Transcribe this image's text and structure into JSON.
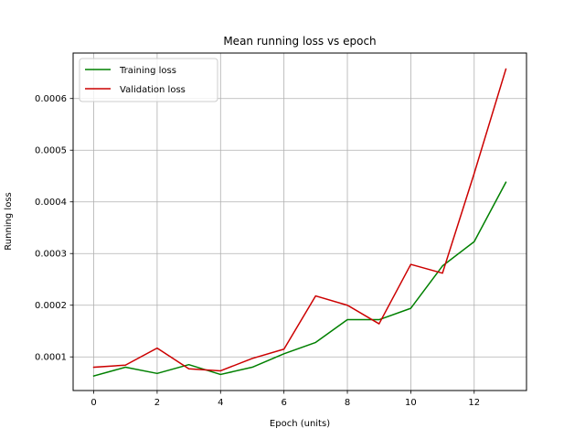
{
  "chart_data": {
    "type": "line",
    "title": "Mean running loss vs epoch",
    "xlabel": "Epoch (units)",
    "ylabel": "Running loss",
    "x": [
      0,
      1,
      2,
      3,
      4,
      5,
      6,
      7,
      8,
      9,
      10,
      11,
      12,
      13
    ],
    "xlim": [
      -0.65,
      13.65
    ],
    "ylim": [
      3.49e-05,
      0.000688
    ],
    "xticks": [
      0,
      2,
      4,
      6,
      8,
      10,
      12
    ],
    "xtick_labels": [
      "0",
      "2",
      "4",
      "6",
      "8",
      "10",
      "12"
    ],
    "yticks": [
      0.0001,
      0.0002,
      0.0003,
      0.0004,
      0.0005,
      0.0006
    ],
    "ytick_labels": [
      "0.0001",
      "0.0002",
      "0.0003",
      "0.0004",
      "0.0005",
      "0.0006"
    ],
    "grid": true,
    "legend_position": "top-left",
    "series": [
      {
        "name": "Training loss",
        "color": "#008000",
        "values": [
          6.3e-05,
          8e-05,
          6.8e-05,
          8.5e-05,
          6.6e-05,
          8e-05,
          0.000106,
          0.000128,
          0.000172,
          0.000172,
          0.000194,
          0.000276,
          0.000323,
          0.000438
        ]
      },
      {
        "name": "Validation loss",
        "color": "#cc0000",
        "values": [
          8e-05,
          8.4e-05,
          0.000117,
          7.7e-05,
          7.3e-05,
          9.7e-05,
          0.000115,
          0.000218,
          0.0002,
          0.000164,
          0.000279,
          0.000262,
          0.000455,
          0.000657
        ]
      }
    ]
  }
}
